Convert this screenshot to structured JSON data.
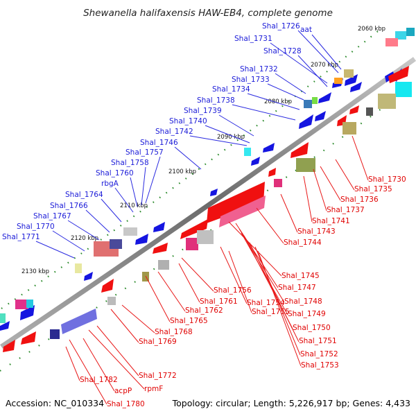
{
  "title": "Shewanella halifaxensis HAW-EB4, complete genome",
  "footer": {
    "accession": "Accession: NC_010334",
    "summary": "Topology: circular; Length: 5,226,917 bp; Genes: 4,433"
  },
  "colors": {
    "forward_label": "#1a1ad8",
    "reverse_label": "#e00000",
    "forward_gene": "#1515e0",
    "reverse_gene": "#f01010",
    "backbone": "#7a7a7a",
    "tick": "#2a8a2a"
  },
  "scale_ticks": [
    "2060 kbp",
    "2070 kbp",
    "2080 kbp",
    "2090 kbp",
    "2100 kbp",
    "2110 kbp",
    "2120 kbp",
    "2130 kbp"
  ],
  "forward_labels": [
    "Shal_1726",
    "aat",
    "Shal_1731",
    "Shal_1728",
    "Shal_1732",
    "Shal_1733",
    "Shal_1734",
    "Shal_1738",
    "Shal_1739",
    "Shal_1740",
    "Shal_1742",
    "Shal_1746",
    "Shal_1757",
    "Shal_1758",
    "Shal_1760",
    "rbgA",
    "Shal_1764",
    "Shal_1766",
    "Shal_1767",
    "Shal_1770",
    "Shal_1771"
  ],
  "reverse_labels": [
    "Shal_1730",
    "Shal_1735",
    "Shal_1736",
    "Shal_1737",
    "Shal_1741",
    "Shal_1743",
    "Shal_1744",
    "Shal_1745",
    "Shal_1747",
    "Shal_1748",
    "Shal_1749",
    "Shal_1750",
    "Shal_1751",
    "Shal_1752",
    "Shal_1753",
    "Shal_1756",
    "Shal_1754",
    "Shal_1755",
    "Shal_1761",
    "Shal_1762",
    "Shal_1765",
    "Shal_1768",
    "Shal_1769",
    "Shal_1772",
    "rpmF",
    "acpP",
    "Shal_1782",
    "Shal_1780"
  ]
}
